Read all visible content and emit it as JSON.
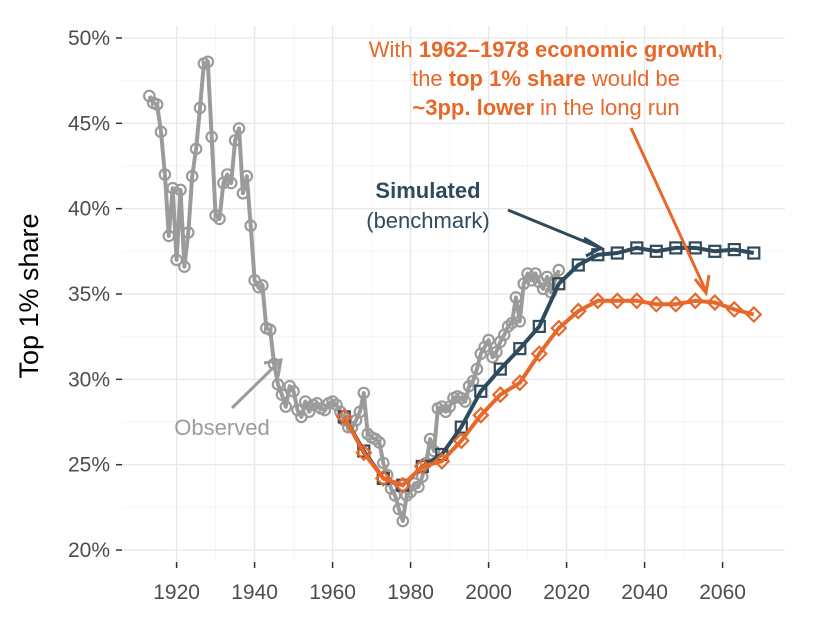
{
  "chart_data": {
    "type": "line",
    "ylabel": "Top 1% share",
    "xlabel": "",
    "xlim": [
      1906,
      2076
    ],
    "ylim": [
      19.3,
      50.7
    ],
    "x_ticks": [
      1920,
      1940,
      1960,
      1980,
      2000,
      2020,
      2040,
      2060
    ],
    "y_ticks": [
      20,
      25,
      30,
      35,
      40,
      45,
      50
    ],
    "y_tick_labels": [
      "20%",
      "25%",
      "30%",
      "35%",
      "40%",
      "45%",
      "50%"
    ],
    "grid": true,
    "series": [
      {
        "name": "Observed",
        "color": "#9b9c9a",
        "marker": "circle",
        "x": [
          1913,
          1914,
          1915,
          1916,
          1917,
          1918,
          1919,
          1920,
          1921,
          1922,
          1923,
          1924,
          1925,
          1926,
          1927,
          1928,
          1929,
          1930,
          1931,
          1932,
          1933,
          1934,
          1935,
          1936,
          1937,
          1938,
          1939,
          1940,
          1941,
          1942,
          1943,
          1944,
          1945,
          1946,
          1947,
          1948,
          1949,
          1950,
          1951,
          1952,
          1953,
          1954,
          1955,
          1956,
          1957,
          1958,
          1959,
          1960,
          1961,
          1962,
          1963,
          1964,
          1965,
          1966,
          1967,
          1968,
          1969,
          1970,
          1971,
          1972,
          1973,
          1974,
          1975,
          1976,
          1977,
          1978,
          1979,
          1980,
          1981,
          1982,
          1983,
          1984,
          1985,
          1986,
          1987,
          1988,
          1989,
          1990,
          1991,
          1992,
          1993,
          1994,
          1995,
          1996,
          1997,
          1998,
          1999,
          2000,
          2001,
          2002,
          2003,
          2004,
          2005,
          2006,
          2007,
          2008,
          2009,
          2010,
          2011,
          2012,
          2013,
          2014,
          2015,
          2016,
          2017,
          2018
        ],
        "y": [
          46.6,
          46.2,
          46.1,
          44.5,
          42,
          38.4,
          41.2,
          37,
          41.1,
          36.6,
          38.6,
          41.9,
          43.5,
          45.9,
          48.5,
          48.6,
          44.2,
          39.6,
          39.4,
          41.5,
          42,
          41.5,
          44,
          44.7,
          40.9,
          41.9,
          39,
          35.8,
          35.4,
          35.5,
          33,
          32.9,
          30.9,
          29.7,
          29.1,
          28.4,
          29.6,
          29.3,
          28.2,
          27.8,
          28.7,
          28.1,
          28.5,
          28.6,
          28.3,
          28.2,
          28.6,
          28.7,
          28.5,
          28.1,
          27.6,
          27.2,
          27.2,
          27.6,
          28.1,
          29.2,
          26.8,
          26.6,
          26.5,
          26.3,
          25.1,
          24.4,
          23.6,
          23.2,
          22.4,
          21.7,
          23.2,
          23.4,
          23.9,
          23.7,
          24.3,
          25.1,
          26.5,
          25.8,
          28.3,
          28.4,
          28.1,
          28.4,
          28.9,
          29,
          28.9,
          28.7,
          29.6,
          29.9,
          30.6,
          31.5,
          31.9,
          32.3,
          31.3,
          31.6,
          32.2,
          32.6,
          33.1,
          33.3,
          34.8,
          33.4,
          35.6,
          36.2,
          35.8,
          36.2,
          35.7,
          35.3,
          36,
          35.1,
          35.8,
          36.4
        ]
      },
      {
        "name": "Simulated (benchmark)",
        "color": "#2f4a5c",
        "marker": "square",
        "x": [
          1963,
          1968,
          1973,
          1978,
          1983,
          1988,
          1993,
          1998,
          2003,
          2008,
          2013,
          2018,
          2023,
          2028,
          2033,
          2038,
          2043,
          2048,
          2053,
          2058,
          2063,
          2068
        ],
        "y": [
          27.8,
          25.8,
          24.2,
          23.8,
          24.9,
          25.6,
          27.2,
          29.3,
          30.6,
          31.8,
          33.1,
          35.6,
          36.7,
          37.3,
          37.4,
          37.7,
          37.5,
          37.7,
          37.7,
          37.5,
          37.6,
          37.4
        ]
      },
      {
        "name": "With 1962–1978 economic growth",
        "color": "#e8682a",
        "marker": "diamond",
        "x": [
          1963,
          1968,
          1973,
          1978,
          1983,
          1988,
          1993,
          1998,
          2003,
          2008,
          2013,
          2018,
          2023,
          2028,
          2033,
          2038,
          2043,
          2048,
          2053,
          2058,
          2063,
          2068
        ],
        "y": [
          27.8,
          25.7,
          24.2,
          23.8,
          24.9,
          25.2,
          26.4,
          27.9,
          29.1,
          29.8,
          31.5,
          33.0,
          34.0,
          34.6,
          34.6,
          34.6,
          34.4,
          34.4,
          34.6,
          34.5,
          34.1,
          33.8
        ]
      }
    ],
    "annotations": {
      "observed": "Observed",
      "simulated_bold": "Simulated",
      "simulated_rest": "(benchmark)",
      "orange_line1_a": "With ",
      "orange_line1_b": "1962–1978 economic growth",
      "orange_line1_c": ",",
      "orange_line2_a": "the ",
      "orange_line2_b": "top 1% share",
      "orange_line2_c": " would be",
      "orange_line3_a": "~3pp. lower",
      "orange_line3_b": " in the long run"
    }
  }
}
